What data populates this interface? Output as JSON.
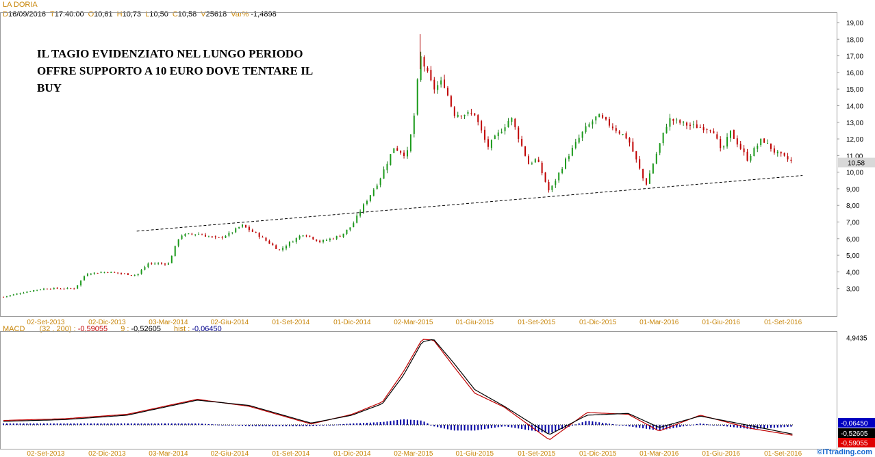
{
  "header": {
    "title": "LA DORIA",
    "fields": [
      {
        "label": "D",
        "value": "16/09/2016"
      },
      {
        "label": "T",
        "value": "17:40:00"
      },
      {
        "label": "O",
        "value": "10,61"
      },
      {
        "label": "H",
        "value": "10,73"
      },
      {
        "label": "L",
        "value": "10,50"
      },
      {
        "label": "C",
        "value": "10,58"
      },
      {
        "label": "V",
        "value": "25618"
      },
      {
        "label": "Var%",
        "value": "-1,4898"
      }
    ]
  },
  "annotation": "IL TAGIO EVIDENZIATO NEL LUNGO PERIODO OFFRE SUPPORTO A 10 EURO DOVE TENTARE IL BUY",
  "macd_header": {
    "name": "MACD",
    "params": "(32 , 200) :",
    "macd_value": "-0,59055",
    "signal_label": "9 :",
    "signal_value": "-0,52605",
    "hist_label": "hist :",
    "hist_value": "-0,06450"
  },
  "credit": "©ITtrading.com",
  "chart_data": [
    {
      "type": "candlestick",
      "title": "LA DORIA",
      "x_tick_labels": [
        "02-Set-2013",
        "02-Dic-2013",
        "03-Mar-2014",
        "02-Giu-2014",
        "01-Set-2014",
        "01-Dic-2014",
        "02-Mar-2015",
        "01-Giu-2015",
        "01-Set-2015",
        "01-Dic-2015",
        "01-Mar-2016",
        "01-Giu-2016",
        "01-Set-2016"
      ],
      "y_tick_labels": [
        "3,00",
        "4,00",
        "5,00",
        "6,00",
        "7,00",
        "8,00",
        "9,00",
        "10,00",
        "11,00",
        "12,00",
        "13,00",
        "14,00",
        "15,00",
        "16,00",
        "17,00",
        "18,00",
        "19,00"
      ],
      "ylim": [
        2,
        19
      ],
      "last_price_label": "10,58",
      "price_path": [
        [
          "2013-07-01",
          2.5
        ],
        [
          "2013-08-15",
          2.9
        ],
        [
          "2013-09-02",
          3.0
        ],
        [
          "2013-10-15",
          3.0
        ],
        [
          "2013-11-01",
          3.9
        ],
        [
          "2013-12-02",
          4.0
        ],
        [
          "2014-01-15",
          3.8
        ],
        [
          "2014-02-01",
          4.5
        ],
        [
          "2014-03-03",
          4.5
        ],
        [
          "2014-03-20",
          6.2
        ],
        [
          "2014-04-15",
          6.3
        ],
        [
          "2014-05-15",
          6.0
        ],
        [
          "2014-06-02",
          6.3
        ],
        [
          "2014-06-20",
          6.8
        ],
        [
          "2014-07-15",
          6.2
        ],
        [
          "2014-08-15",
          5.3
        ],
        [
          "2014-09-01",
          5.8
        ],
        [
          "2014-09-20",
          6.3
        ],
        [
          "2014-10-15",
          5.8
        ],
        [
          "2014-11-15",
          6.2
        ],
        [
          "2014-12-01",
          6.8
        ],
        [
          "2014-12-15",
          7.8
        ],
        [
          "2015-01-10",
          9.5
        ],
        [
          "2015-02-01",
          11.5
        ],
        [
          "2015-02-20",
          11.0
        ],
        [
          "2015-03-02",
          13.0
        ],
        [
          "2015-03-12",
          17.0
        ],
        [
          "2015-04-01",
          15.0
        ],
        [
          "2015-04-15",
          15.5
        ],
        [
          "2015-05-01",
          13.5
        ],
        [
          "2015-06-01",
          13.5
        ],
        [
          "2015-06-20",
          11.5
        ],
        [
          "2015-07-10",
          12.5
        ],
        [
          "2015-07-25",
          13.3
        ],
        [
          "2015-08-20",
          10.5
        ],
        [
          "2015-09-01",
          10.8
        ],
        [
          "2015-09-20",
          8.8
        ],
        [
          "2015-10-15",
          10.8
        ],
        [
          "2015-11-10",
          12.5
        ],
        [
          "2015-12-01",
          13.4
        ],
        [
          "2016-01-15",
          12.0
        ],
        [
          "2016-02-10",
          9.2
        ],
        [
          "2016-02-25",
          11.0
        ],
        [
          "2016-03-15",
          13.2
        ],
        [
          "2016-04-15",
          12.8
        ],
        [
          "2016-05-20",
          12.6
        ],
        [
          "2016-06-01",
          11.2
        ],
        [
          "2016-06-15",
          12.4
        ],
        [
          "2016-07-10",
          10.8
        ],
        [
          "2016-08-01",
          12.0
        ],
        [
          "2016-08-20",
          11.2
        ],
        [
          "2016-09-16",
          10.58
        ]
      ],
      "trendline": {
        "style": "dashed",
        "from": [
          "2014-01-15",
          6.45
        ],
        "to": [
          "2016-09-30",
          9.8
        ]
      }
    },
    {
      "type": "line",
      "title": "MACD",
      "y_tick_labels": [
        "4,9435"
      ],
      "value_labels": [
        "-0,06450",
        "-0,52605",
        "-0,59055"
      ],
      "series": [
        {
          "color": "#c00000",
          "values": [
            [
              "2013-07-01",
              0.25
            ],
            [
              "2013-10-01",
              0.35
            ],
            [
              "2014-01-01",
              0.6
            ],
            [
              "2014-04-15",
              1.45
            ],
            [
              "2014-07-01",
              1.05
            ],
            [
              "2014-10-01",
              0.05
            ],
            [
              "2014-12-01",
              0.6
            ],
            [
              "2015-01-15",
              1.3
            ],
            [
              "2015-02-15",
              3.0
            ],
            [
              "2015-03-15",
              4.85
            ],
            [
              "2015-04-01",
              4.8
            ],
            [
              "2015-05-01",
              3.3
            ],
            [
              "2015-06-01",
              1.8
            ],
            [
              "2015-07-15",
              1.0
            ],
            [
              "2015-09-20",
              -0.85
            ],
            [
              "2015-11-15",
              0.7
            ],
            [
              "2016-01-15",
              0.6
            ],
            [
              "2016-03-01",
              -0.35
            ],
            [
              "2016-05-01",
              0.55
            ],
            [
              "2016-07-15",
              -0.2
            ],
            [
              "2016-09-16",
              -0.59
            ]
          ]
        },
        {
          "color": "#000000",
          "values": [
            [
              "2013-07-01",
              0.2
            ],
            [
              "2013-10-01",
              0.3
            ],
            [
              "2014-01-01",
              0.55
            ],
            [
              "2014-04-15",
              1.4
            ],
            [
              "2014-07-01",
              1.1
            ],
            [
              "2014-10-01",
              0.1
            ],
            [
              "2014-12-01",
              0.55
            ],
            [
              "2015-01-15",
              1.2
            ],
            [
              "2015-02-15",
              2.8
            ],
            [
              "2015-03-15",
              4.7
            ],
            [
              "2015-04-01",
              4.85
            ],
            [
              "2015-05-01",
              3.5
            ],
            [
              "2015-06-01",
              2.0
            ],
            [
              "2015-07-15",
              1.05
            ],
            [
              "2015-09-20",
              -0.55
            ],
            [
              "2015-11-15",
              0.55
            ],
            [
              "2016-01-15",
              0.65
            ],
            [
              "2016-03-01",
              -0.15
            ],
            [
              "2016-05-01",
              0.5
            ],
            [
              "2016-07-15",
              -0.05
            ],
            [
              "2016-09-16",
              -0.53
            ]
          ]
        }
      ]
    }
  ]
}
